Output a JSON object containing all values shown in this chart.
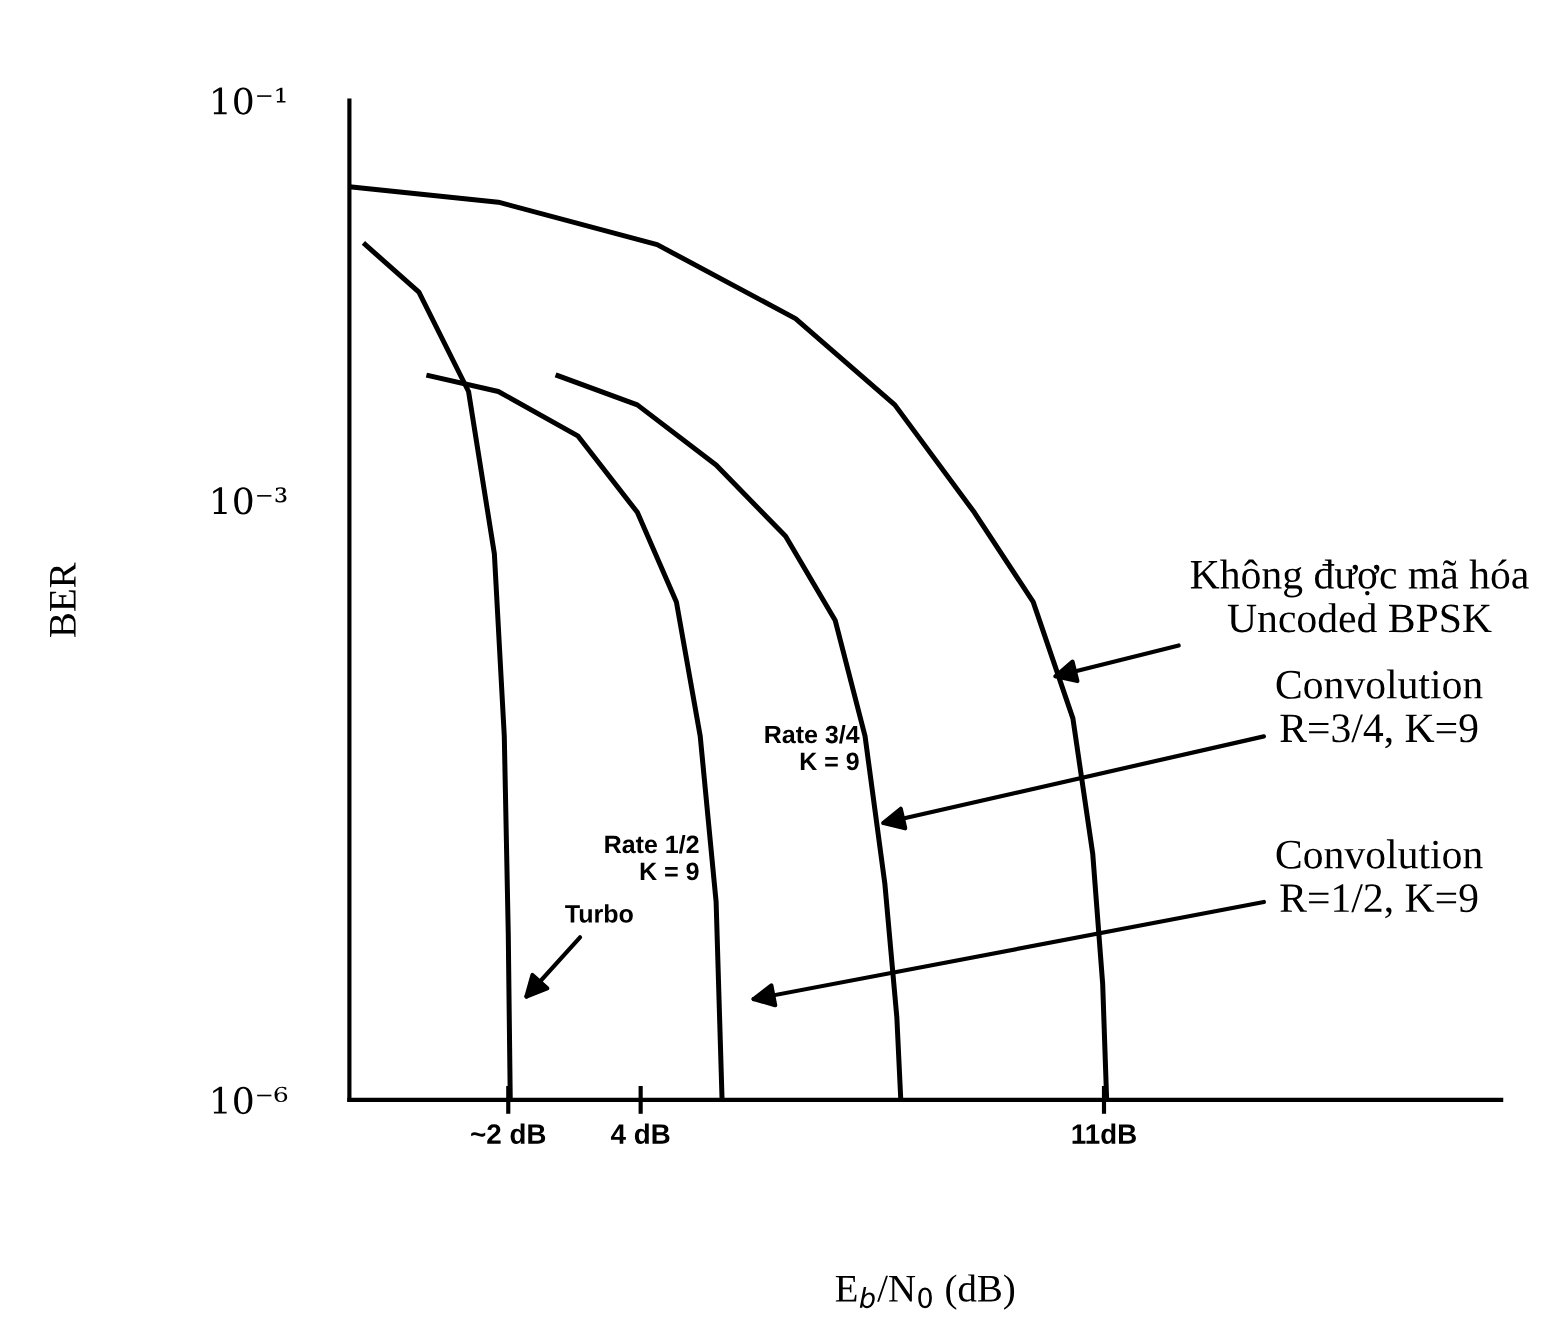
{
  "chart_data": {
    "type": "line",
    "xlabel": "E$_{b}$/N$_{0}$ (dB)",
    "ylabel": "BER",
    "log": "y",
    "xlim": [
      -0.4,
      17
    ],
    "xticks": [
      {
        "value": 2,
        "label": "~2 dB"
      },
      {
        "value": 4,
        "label": "4 dB"
      },
      {
        "value": 11,
        "label": "11dB"
      }
    ],
    "ylim": [
      1e-06,
      0.1
    ],
    "yticks": [
      {
        "value": 1e-06,
        "label": "10⁻⁶"
      },
      {
        "value": 0.001,
        "label": "10⁻³"
      },
      {
        "value": 0.1,
        "label": "10⁻¹"
      }
    ],
    "grid": false,
    "marker": "none",
    "line_style": "solid",
    "series": [
      {
        "color": "#000000",
        "x": [
          -0.4,
          1.85,
          4.25,
          6.34,
          7.84,
          9.04,
          9.93,
          10.53,
          10.83,
          10.98,
          11.04
        ],
        "values": [
          0.037,
          0.031,
          0.019,
          0.0081,
          0.003,
          0.00087,
          0.00031,
          8.1e-05,
          1.7e-05,
          3.8e-06,
          1e-06
        ]
      },
      {
        "color": "#000000",
        "x": [
          2.75,
          3.95,
          5.14,
          6.19,
          6.94,
          7.39,
          7.69,
          7.87,
          7.93
        ],
        "values": [
          0.0042,
          0.003,
          0.0015,
          0.00066,
          0.00025,
          6.6e-05,
          1.2e-05,
          2.6e-06,
          1e-06
        ]
      },
      {
        "color": "#000000",
        "x": [
          0.8,
          1.85,
          3.05,
          3.95,
          4.54,
          4.9,
          5.14,
          5.23
        ],
        "values": [
          0.0042,
          0.0035,
          0.0021,
          0.00087,
          0.00031,
          6.6e-05,
          9.8e-06,
          1e-06
        ]
      },
      {
        "color": "#000000",
        "x": [
          -0.16,
          0.65,
          1.4,
          1.79,
          1.94,
          2.0,
          2.03
        ],
        "values": [
          0.019,
          0.011,
          0.0035,
          0.00054,
          6.6e-05,
          6.8e-06,
          1e-06
        ]
      }
    ],
    "annotations": [
      {
        "text": "Không được mã hóa\nUncoded BPSK",
        "x": 10.2,
        "y": 0.00013
      },
      {
        "text": "Convolution\nR=3/4, K=9",
        "x": 7.6,
        "y": 2.4e-05
      },
      "Convolution\nR=1/2, K=9",
      "Turbo",
      "Rate 3/4\nK = 9",
      "Rate 1/2\nK = 9"
    ]
  }
}
